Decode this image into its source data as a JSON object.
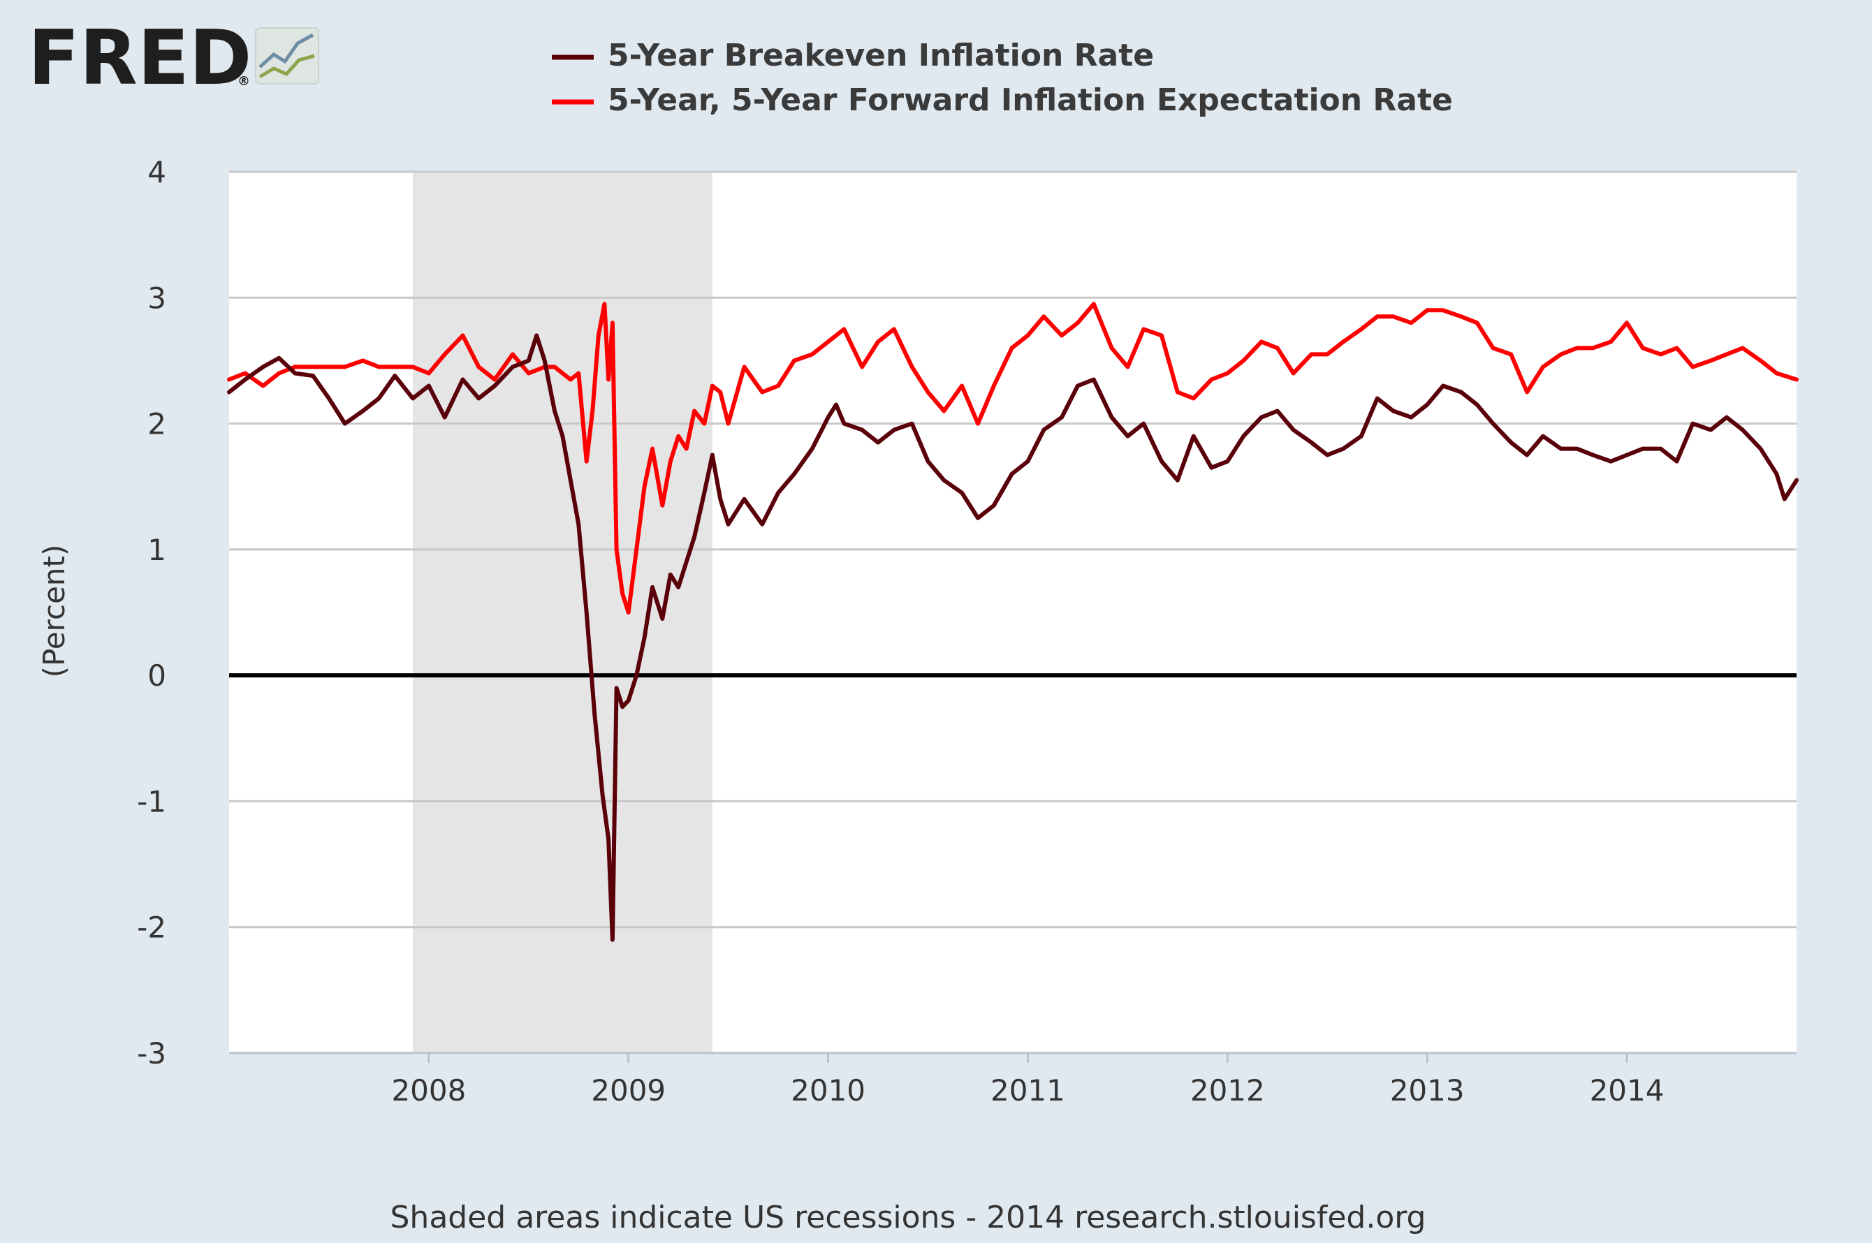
{
  "logo": {
    "text": "FRED",
    "registered": "®"
  },
  "colors": {
    "background": "#e1e9f0",
    "plot_background": "#ffffff",
    "recession_shade": "#e5e5e5",
    "series_breakeven": "#5a0009",
    "series_forward": "#ff0000",
    "gridline": "#c8c8c8",
    "zero_line": "#000000"
  },
  "footer": {
    "text": "Shaded areas indicate US recessions - 2014 research.stlouisfed.org"
  },
  "chart_data": {
    "type": "line",
    "title": "",
    "xlabel": "",
    "ylabel": "(Percent)",
    "ylim": [
      -3,
      4
    ],
    "yticks": [
      4,
      3,
      2,
      1,
      0,
      -1,
      -2,
      -3
    ],
    "xlim": [
      2007.0,
      2014.85
    ],
    "xticks": [
      "2008",
      "2009",
      "2010",
      "2011",
      "2012",
      "2013",
      "2014"
    ],
    "grid": true,
    "legend_position": "top",
    "recessions": [
      {
        "start": 2007.92,
        "end": 2009.42
      }
    ],
    "series": [
      {
        "name": "5-Year Breakeven Inflation Rate",
        "color": "#5a0009",
        "points": [
          [
            2007.0,
            2.25
          ],
          [
            2007.08,
            2.35
          ],
          [
            2007.17,
            2.45
          ],
          [
            2007.25,
            2.52
          ],
          [
            2007.33,
            2.4
          ],
          [
            2007.42,
            2.38
          ],
          [
            2007.5,
            2.2
          ],
          [
            2007.58,
            2.0
          ],
          [
            2007.67,
            2.1
          ],
          [
            2007.75,
            2.2
          ],
          [
            2007.83,
            2.38
          ],
          [
            2007.92,
            2.2
          ],
          [
            2008.0,
            2.3
          ],
          [
            2008.08,
            2.05
          ],
          [
            2008.17,
            2.35
          ],
          [
            2008.25,
            2.2
          ],
          [
            2008.33,
            2.3
          ],
          [
            2008.42,
            2.45
          ],
          [
            2008.5,
            2.5
          ],
          [
            2008.54,
            2.7
          ],
          [
            2008.58,
            2.5
          ],
          [
            2008.63,
            2.1
          ],
          [
            2008.67,
            1.9
          ],
          [
            2008.71,
            1.55
          ],
          [
            2008.75,
            1.2
          ],
          [
            2008.79,
            0.5
          ],
          [
            2008.83,
            -0.3
          ],
          [
            2008.87,
            -0.95
          ],
          [
            2008.9,
            -1.3
          ],
          [
            2008.92,
            -2.1
          ],
          [
            2008.94,
            -0.1
          ],
          [
            2008.97,
            -0.25
          ],
          [
            2009.0,
            -0.2
          ],
          [
            2009.04,
            0.0
          ],
          [
            2009.08,
            0.3
          ],
          [
            2009.12,
            0.7
          ],
          [
            2009.17,
            0.45
          ],
          [
            2009.21,
            0.8
          ],
          [
            2009.25,
            0.7
          ],
          [
            2009.29,
            0.9
          ],
          [
            2009.33,
            1.1
          ],
          [
            2009.38,
            1.45
          ],
          [
            2009.42,
            1.75
          ],
          [
            2009.46,
            1.4
          ],
          [
            2009.5,
            1.2
          ],
          [
            2009.58,
            1.4
          ],
          [
            2009.67,
            1.2
          ],
          [
            2009.75,
            1.45
          ],
          [
            2009.83,
            1.6
          ],
          [
            2009.92,
            1.8
          ],
          [
            2010.0,
            2.05
          ],
          [
            2010.04,
            2.15
          ],
          [
            2010.08,
            2.0
          ],
          [
            2010.17,
            1.95
          ],
          [
            2010.25,
            1.85
          ],
          [
            2010.33,
            1.95
          ],
          [
            2010.42,
            2.0
          ],
          [
            2010.5,
            1.7
          ],
          [
            2010.58,
            1.55
          ],
          [
            2010.67,
            1.45
          ],
          [
            2010.75,
            1.25
          ],
          [
            2010.83,
            1.35
          ],
          [
            2010.92,
            1.6
          ],
          [
            2011.0,
            1.7
          ],
          [
            2011.08,
            1.95
          ],
          [
            2011.17,
            2.05
          ],
          [
            2011.25,
            2.3
          ],
          [
            2011.33,
            2.35
          ],
          [
            2011.42,
            2.05
          ],
          [
            2011.5,
            1.9
          ],
          [
            2011.58,
            2.0
          ],
          [
            2011.67,
            1.7
          ],
          [
            2011.75,
            1.55
          ],
          [
            2011.83,
            1.9
          ],
          [
            2011.92,
            1.65
          ],
          [
            2012.0,
            1.7
          ],
          [
            2012.08,
            1.9
          ],
          [
            2012.17,
            2.05
          ],
          [
            2012.25,
            2.1
          ],
          [
            2012.33,
            1.95
          ],
          [
            2012.42,
            1.85
          ],
          [
            2012.5,
            1.75
          ],
          [
            2012.58,
            1.8
          ],
          [
            2012.67,
            1.9
          ],
          [
            2012.75,
            2.2
          ],
          [
            2012.83,
            2.1
          ],
          [
            2012.92,
            2.05
          ],
          [
            2013.0,
            2.15
          ],
          [
            2013.08,
            2.3
          ],
          [
            2013.17,
            2.25
          ],
          [
            2013.25,
            2.15
          ],
          [
            2013.33,
            2.0
          ],
          [
            2013.42,
            1.85
          ],
          [
            2013.5,
            1.75
          ],
          [
            2013.58,
            1.9
          ],
          [
            2013.67,
            1.8
          ],
          [
            2013.75,
            1.8
          ],
          [
            2013.83,
            1.75
          ],
          [
            2013.92,
            1.7
          ],
          [
            2014.0,
            1.75
          ],
          [
            2014.08,
            1.8
          ],
          [
            2014.17,
            1.8
          ],
          [
            2014.25,
            1.7
          ],
          [
            2014.33,
            2.0
          ],
          [
            2014.42,
            1.95
          ],
          [
            2014.5,
            2.05
          ],
          [
            2014.58,
            1.95
          ],
          [
            2014.67,
            1.8
          ],
          [
            2014.75,
            1.6
          ],
          [
            2014.79,
            1.4
          ],
          [
            2014.85,
            1.55
          ]
        ]
      },
      {
        "name": "5-Year, 5-Year Forward Inflation Expectation Rate",
        "color": "#ff0000",
        "points": [
          [
            2007.0,
            2.35
          ],
          [
            2007.08,
            2.4
          ],
          [
            2007.17,
            2.3
          ],
          [
            2007.25,
            2.4
          ],
          [
            2007.33,
            2.45
          ],
          [
            2007.42,
            2.45
          ],
          [
            2007.5,
            2.45
          ],
          [
            2007.58,
            2.45
          ],
          [
            2007.67,
            2.5
          ],
          [
            2007.75,
            2.45
          ],
          [
            2007.83,
            2.45
          ],
          [
            2007.92,
            2.45
          ],
          [
            2008.0,
            2.4
          ],
          [
            2008.08,
            2.55
          ],
          [
            2008.17,
            2.7
          ],
          [
            2008.25,
            2.45
          ],
          [
            2008.33,
            2.35
          ],
          [
            2008.42,
            2.55
          ],
          [
            2008.5,
            2.4
          ],
          [
            2008.58,
            2.45
          ],
          [
            2008.63,
            2.45
          ],
          [
            2008.67,
            2.4
          ],
          [
            2008.71,
            2.35
          ],
          [
            2008.75,
            2.4
          ],
          [
            2008.79,
            1.7
          ],
          [
            2008.82,
            2.1
          ],
          [
            2008.85,
            2.7
          ],
          [
            2008.88,
            2.95
          ],
          [
            2008.9,
            2.35
          ],
          [
            2008.92,
            2.8
          ],
          [
            2008.94,
            1.0
          ],
          [
            2008.97,
            0.65
          ],
          [
            2009.0,
            0.5
          ],
          [
            2009.04,
            1.0
          ],
          [
            2009.08,
            1.5
          ],
          [
            2009.12,
            1.8
          ],
          [
            2009.17,
            1.35
          ],
          [
            2009.21,
            1.7
          ],
          [
            2009.25,
            1.9
          ],
          [
            2009.29,
            1.8
          ],
          [
            2009.33,
            2.1
          ],
          [
            2009.38,
            2.0
          ],
          [
            2009.42,
            2.3
          ],
          [
            2009.46,
            2.25
          ],
          [
            2009.5,
            2.0
          ],
          [
            2009.58,
            2.45
          ],
          [
            2009.67,
            2.25
          ],
          [
            2009.75,
            2.3
          ],
          [
            2009.83,
            2.5
          ],
          [
            2009.92,
            2.55
          ],
          [
            2010.0,
            2.65
          ],
          [
            2010.08,
            2.75
          ],
          [
            2010.17,
            2.45
          ],
          [
            2010.25,
            2.65
          ],
          [
            2010.33,
            2.75
          ],
          [
            2010.42,
            2.45
          ],
          [
            2010.5,
            2.25
          ],
          [
            2010.58,
            2.1
          ],
          [
            2010.67,
            2.3
          ],
          [
            2010.75,
            2.0
          ],
          [
            2010.83,
            2.3
          ],
          [
            2010.92,
            2.6
          ],
          [
            2011.0,
            2.7
          ],
          [
            2011.08,
            2.85
          ],
          [
            2011.17,
            2.7
          ],
          [
            2011.25,
            2.8
          ],
          [
            2011.33,
            2.95
          ],
          [
            2011.42,
            2.6
          ],
          [
            2011.5,
            2.45
          ],
          [
            2011.58,
            2.75
          ],
          [
            2011.67,
            2.7
          ],
          [
            2011.75,
            2.25
          ],
          [
            2011.83,
            2.2
          ],
          [
            2011.92,
            2.35
          ],
          [
            2012.0,
            2.4
          ],
          [
            2012.08,
            2.5
          ],
          [
            2012.17,
            2.65
          ],
          [
            2012.25,
            2.6
          ],
          [
            2012.33,
            2.4
          ],
          [
            2012.42,
            2.55
          ],
          [
            2012.5,
            2.55
          ],
          [
            2012.58,
            2.65
          ],
          [
            2012.67,
            2.75
          ],
          [
            2012.75,
            2.85
          ],
          [
            2012.83,
            2.85
          ],
          [
            2012.92,
            2.8
          ],
          [
            2013.0,
            2.9
          ],
          [
            2013.08,
            2.9
          ],
          [
            2013.17,
            2.85
          ],
          [
            2013.25,
            2.8
          ],
          [
            2013.33,
            2.6
          ],
          [
            2013.42,
            2.55
          ],
          [
            2013.5,
            2.25
          ],
          [
            2013.58,
            2.45
          ],
          [
            2013.67,
            2.55
          ],
          [
            2013.75,
            2.6
          ],
          [
            2013.83,
            2.6
          ],
          [
            2013.92,
            2.65
          ],
          [
            2014.0,
            2.8
          ],
          [
            2014.08,
            2.6
          ],
          [
            2014.17,
            2.55
          ],
          [
            2014.25,
            2.6
          ],
          [
            2014.33,
            2.45
          ],
          [
            2014.42,
            2.5
          ],
          [
            2014.5,
            2.55
          ],
          [
            2014.58,
            2.6
          ],
          [
            2014.67,
            2.5
          ],
          [
            2014.75,
            2.4
          ],
          [
            2014.85,
            2.35
          ]
        ]
      }
    ]
  }
}
